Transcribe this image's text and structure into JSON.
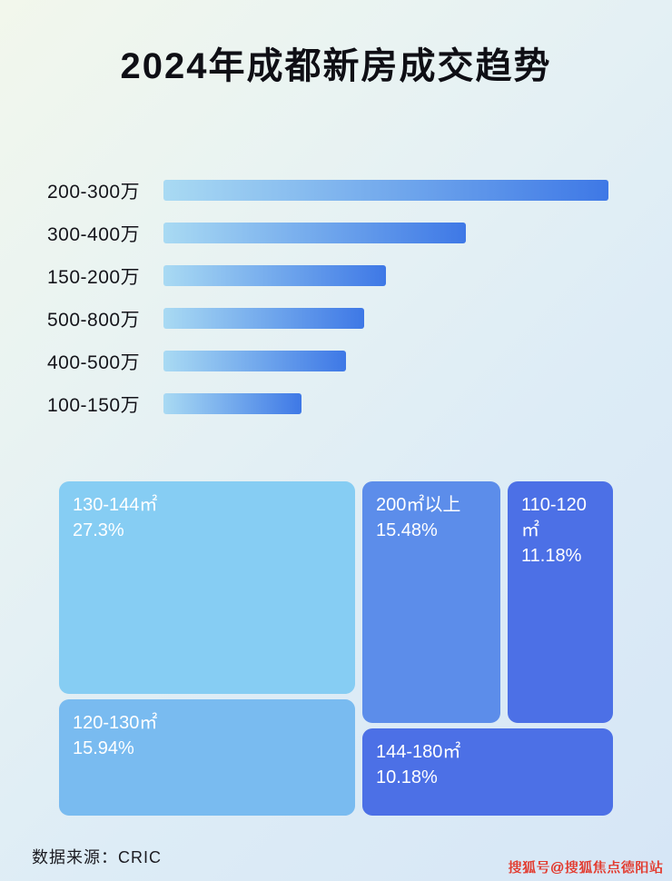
{
  "header": {
    "title": "2024年成都新房成交趋势"
  },
  "footer": {
    "source_label": "数据来源：CRIC",
    "watermark": "搜狐号@搜狐焦点德阳站"
  },
  "colors": {
    "bar_gradient_start": "#a9daf3",
    "bar_gradient_end": "#3e78e6",
    "title_text": "#0f0f15",
    "watermark_red": "#e23c30"
  },
  "chart_data": [
    {
      "type": "bar",
      "orientation": "horizontal",
      "title": "2024年成都新房成交趋势",
      "categories": [
        "200-300万",
        "300-400万",
        "150-200万",
        "500-800万",
        "400-500万",
        "100-150万"
      ],
      "values": [
        100,
        68,
        50,
        45,
        41,
        31
      ],
      "value_note": "no numeric axis shown; values are relative bar lengths with longest bar = 100",
      "grid": false,
      "legend": false
    },
    {
      "type": "treemap",
      "items": [
        {
          "label": "130-144㎡",
          "percent": "27.3%",
          "value": 27.3,
          "color": "#86cdf3"
        },
        {
          "label": "200㎡以上",
          "percent": "15.48%",
          "value": 15.48,
          "color": "#5c8dea"
        },
        {
          "label": "110-120㎡",
          "percent": "11.18%",
          "value": 11.18,
          "color": "#4c70e6"
        },
        {
          "label": "120-130㎡",
          "percent": "15.94%",
          "value": 15.94,
          "color": "#79bbf0"
        },
        {
          "label": "144-180㎡",
          "percent": "10.18%",
          "value": 10.18,
          "color": "#4c70e6"
        }
      ]
    }
  ]
}
